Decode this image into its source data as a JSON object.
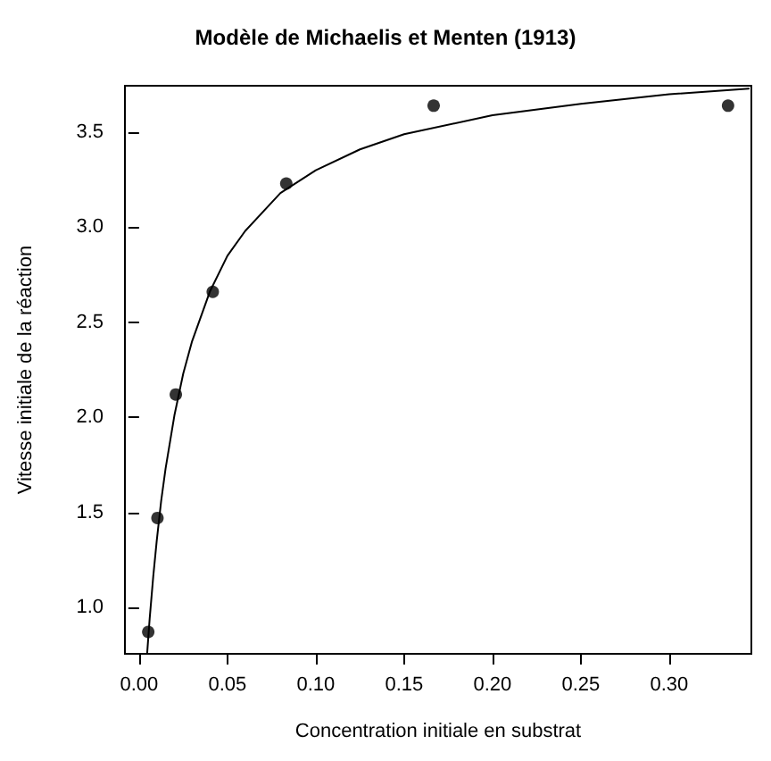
{
  "chart_data": {
    "type": "scatter",
    "title": "Modèle de Michaelis et Menten (1913)",
    "xlabel": "Concentration initiale en substrat",
    "ylabel": "Vitesse initiale de la réaction",
    "xlim": [
      -0.008,
      0.3465
    ],
    "ylim": [
      0.755,
      3.745
    ],
    "xticks": [
      {
        "value": 0,
        "label": "0.00"
      },
      {
        "value": 0.05,
        "label": "0.05"
      },
      {
        "value": 0.1,
        "label": "0.10"
      },
      {
        "value": 0.15,
        "label": "0.15"
      },
      {
        "value": 0.2,
        "label": "0.20"
      },
      {
        "value": 0.25,
        "label": "0.25"
      },
      {
        "value": 0.3,
        "label": "0.30"
      }
    ],
    "yticks": [
      {
        "value": 1,
        "label": "1.0"
      },
      {
        "value": 1.5,
        "label": "1.5"
      },
      {
        "value": 2,
        "label": "2.0"
      },
      {
        "value": 2.5,
        "label": "2.5"
      },
      {
        "value": 3,
        "label": "3.0"
      },
      {
        "value": 3.5,
        "label": "3.5"
      }
    ],
    "line_style": "solid",
    "series": [
      {
        "color": "#000000",
        "marker": "circle",
        "x": [
          0.0052,
          0.0104,
          0.0208,
          0.0417,
          0.0833,
          0.1667,
          0.3333
        ],
        "values": [
          0.87,
          1.47,
          2.12,
          2.66,
          3.23,
          3.64,
          3.64
        ]
      },
      {
        "type": "line",
        "color": "#000000",
        "marker": "none",
        "x": [
          0.0046,
          0.006,
          0.008,
          0.01,
          0.0125,
          0.015,
          0.02,
          0.025,
          0.03,
          0.04,
          0.05,
          0.06,
          0.08,
          0.1,
          0.125,
          0.15,
          0.2,
          0.25,
          0.3,
          0.345
        ],
        "values": [
          0.76,
          0.94,
          1.16,
          1.35,
          1.56,
          1.73,
          2.01,
          2.23,
          2.4,
          2.66,
          2.85,
          2.98,
          3.18,
          3.3,
          3.41,
          3.49,
          3.59,
          3.65,
          3.7,
          3.73
        ]
      }
    ]
  }
}
